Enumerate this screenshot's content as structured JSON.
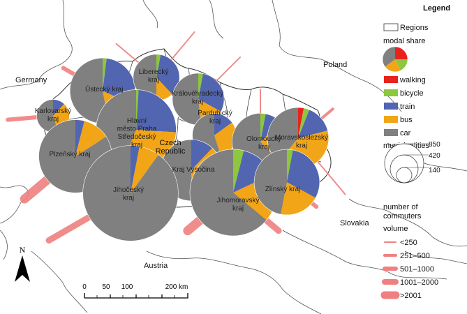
{
  "map": {
    "countries": [
      {
        "id": "germany",
        "label": "Germany"
      },
      {
        "id": "poland",
        "label": "Poland"
      },
      {
        "id": "austria",
        "label": "Austria"
      },
      {
        "id": "slovakia",
        "label": "Slovakia"
      },
      {
        "id": "czech",
        "label": "Czech\nRepublic"
      }
    ],
    "regions": [
      {
        "id": "ustecky",
        "label": "Ústecký kraj",
        "municipalities": 400,
        "share": {
          "walking": 0,
          "bicycle": 2,
          "train": 30,
          "bus": 15,
          "car": 53
        },
        "flows": [
          {
            "dir": 300,
            "len": 65,
            "class": 3
          }
        ]
      },
      {
        "id": "liberecky",
        "label": "Liberecký\nkraj",
        "municipalities": 200,
        "share": {
          "walking": 0,
          "bicycle": 3,
          "train": 35,
          "bus": 12,
          "car": 50
        },
        "flows": [
          {
            "dir": 310,
            "len": 75,
            "class": 1
          },
          {
            "dir": 40,
            "len": 85,
            "class": 1
          }
        ]
      },
      {
        "id": "karlovarsky",
        "label": "Karlovarský\nkraj",
        "municipalities": 100,
        "share": {
          "walking": 0,
          "bicycle": 0,
          "train": 12,
          "bus": 33,
          "car": 55
        },
        "flows": [
          {
            "dir": 265,
            "len": 65,
            "class": 3
          }
        ]
      },
      {
        "id": "kralovehradecky",
        "label": "Královéhradecký\nkraj",
        "municipalities": 250,
        "share": {
          "walking": 0,
          "bicycle": 3,
          "train": 30,
          "bus": 15,
          "car": 52
        },
        "flows": [
          {
            "dir": 45,
            "len": 85,
            "class": 1
          }
        ]
      },
      {
        "id": "praha",
        "label": "Hlavní\nměsto Praha\nStředočeský\nkraj",
        "municipalities": 600,
        "share": {
          "walking": 0,
          "bicycle": 1,
          "train": 25,
          "bus": 30,
          "car": 44
        },
        "flows": []
      },
      {
        "id": "pardubicky",
        "label": "Pardubický\nkraj",
        "municipalities": 180,
        "share": {
          "walking": 0,
          "bicycle": 0,
          "train": 15,
          "bus": 30,
          "car": 55
        },
        "flows": []
      },
      {
        "id": "olomoucky",
        "label": "Olomoucký\nkraj",
        "municipalities": 300,
        "share": {
          "walking": 0,
          "bicycle": 3,
          "train": 10,
          "bus": 25,
          "car": 62
        },
        "flows": [
          {
            "dir": 0,
            "len": 75,
            "class": 1
          },
          {
            "dir": 345,
            "len": 35,
            "class": 1
          }
        ]
      },
      {
        "id": "moravskoslezsky",
        "label": "Moravskoslezský\nkraj",
        "municipalities": 350,
        "share": {
          "walking": 3,
          "bicycle": 3,
          "train": 15,
          "bus": 40,
          "car": 39
        },
        "flows": [
          {
            "dir": 50,
            "len": 65,
            "class": 2
          },
          {
            "dir": 140,
            "len": 105,
            "class": 1
          }
        ]
      },
      {
        "id": "plzensky",
        "label": "Plzeňský kraj",
        "municipalities": 500,
        "share": {
          "walking": 0,
          "bicycle": 0,
          "train": 4,
          "bus": 12,
          "car": 84
        },
        "flows": [
          {
            "dir": 230,
            "len": 95,
            "class": 5
          }
        ]
      },
      {
        "id": "vysocina",
        "label": "Kraj Vysočina",
        "municipalities": 350,
        "share": {
          "walking": 0,
          "bicycle": 0,
          "train": 12,
          "bus": 38,
          "car": 50
        },
        "flows": []
      },
      {
        "id": "jihocesky",
        "label": "Jihočeský\nkraj",
        "municipalities": 850,
        "share": {
          "walking": 0,
          "bicycle": 0,
          "train": 3,
          "bus": 7,
          "car": 90
        },
        "flows": [
          {
            "dir": 240,
            "len": 135,
            "class": 4
          }
        ]
      },
      {
        "id": "jihomoravsky",
        "label": "Jihomoravský\nkraj",
        "municipalities": 700,
        "share": {
          "walking": 0,
          "bicycle": 4,
          "train": 14,
          "bus": 18,
          "car": 64
        },
        "flows": [
          {
            "dir": 230,
            "len": 85,
            "class": 5
          },
          {
            "dir": 130,
            "len": 85,
            "class": 4
          }
        ]
      },
      {
        "id": "zlinsky",
        "label": "Zlínský kraj",
        "municipalities": 400,
        "share": {
          "walking": 0,
          "bicycle": 3,
          "train": 30,
          "bus": 20,
          "car": 47
        },
        "flows": [
          {
            "dir": 130,
            "len": 55,
            "class": 3
          }
        ]
      }
    ],
    "north_arrow_label": "N",
    "scalebar": {
      "ticks": [
        "0",
        "50",
        "100",
        "200 km"
      ]
    }
  },
  "legend": {
    "title": "Legend",
    "regions_label": "Regions",
    "modal_share_label": "modal share",
    "modes": [
      {
        "key": "walking",
        "label": "walking",
        "color": "#e8231e"
      },
      {
        "key": "bicycle",
        "label": "bicycle",
        "color": "#8dc63f"
      },
      {
        "key": "train",
        "label": "train",
        "color": "#5265b1"
      },
      {
        "key": "bus",
        "label": "bus",
        "color": "#f2a516"
      },
      {
        "key": "car",
        "label": "car",
        "color": "#808080"
      }
    ],
    "municipalities_label": "municipalities",
    "municipality_sizes": [
      850,
      420,
      140
    ],
    "commuters_label": "number of\ncommuters",
    "volume_label": "volume",
    "volume_classes": [
      "<250",
      "251–500",
      "501–1000",
      "1001–2000",
      ">2001"
    ],
    "flow_color": "#f08080"
  }
}
